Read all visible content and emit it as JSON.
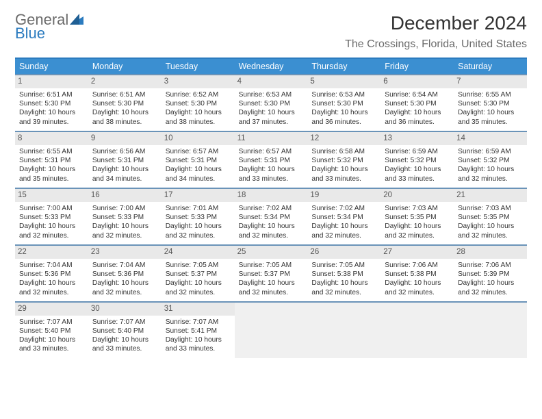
{
  "logo": {
    "line1": "General",
    "line2": "Blue"
  },
  "title": "December 2024",
  "subtitle": "The Crossings, Florida, United States",
  "dayheads": [
    "Sunday",
    "Monday",
    "Tuesday",
    "Wednesday",
    "Thursday",
    "Friday",
    "Saturday"
  ],
  "colors": {
    "header_bg": "#3b8fd1",
    "header_border": "#2b7bbf",
    "row_rule": "#6a93b8",
    "daynum_bg": "#e9e9e9",
    "text_muted": "#6b6b6b"
  },
  "cells": [
    {
      "n": "1",
      "sr": "Sunrise: 6:51 AM",
      "ss": "Sunset: 5:30 PM",
      "dl": "Daylight: 10 hours and 39 minutes."
    },
    {
      "n": "2",
      "sr": "Sunrise: 6:51 AM",
      "ss": "Sunset: 5:30 PM",
      "dl": "Daylight: 10 hours and 38 minutes."
    },
    {
      "n": "3",
      "sr": "Sunrise: 6:52 AM",
      "ss": "Sunset: 5:30 PM",
      "dl": "Daylight: 10 hours and 38 minutes."
    },
    {
      "n": "4",
      "sr": "Sunrise: 6:53 AM",
      "ss": "Sunset: 5:30 PM",
      "dl": "Daylight: 10 hours and 37 minutes."
    },
    {
      "n": "5",
      "sr": "Sunrise: 6:53 AM",
      "ss": "Sunset: 5:30 PM",
      "dl": "Daylight: 10 hours and 36 minutes."
    },
    {
      "n": "6",
      "sr": "Sunrise: 6:54 AM",
      "ss": "Sunset: 5:30 PM",
      "dl": "Daylight: 10 hours and 36 minutes."
    },
    {
      "n": "7",
      "sr": "Sunrise: 6:55 AM",
      "ss": "Sunset: 5:30 PM",
      "dl": "Daylight: 10 hours and 35 minutes."
    },
    {
      "n": "8",
      "sr": "Sunrise: 6:55 AM",
      "ss": "Sunset: 5:31 PM",
      "dl": "Daylight: 10 hours and 35 minutes."
    },
    {
      "n": "9",
      "sr": "Sunrise: 6:56 AM",
      "ss": "Sunset: 5:31 PM",
      "dl": "Daylight: 10 hours and 34 minutes."
    },
    {
      "n": "10",
      "sr": "Sunrise: 6:57 AM",
      "ss": "Sunset: 5:31 PM",
      "dl": "Daylight: 10 hours and 34 minutes."
    },
    {
      "n": "11",
      "sr": "Sunrise: 6:57 AM",
      "ss": "Sunset: 5:31 PM",
      "dl": "Daylight: 10 hours and 33 minutes."
    },
    {
      "n": "12",
      "sr": "Sunrise: 6:58 AM",
      "ss": "Sunset: 5:32 PM",
      "dl": "Daylight: 10 hours and 33 minutes."
    },
    {
      "n": "13",
      "sr": "Sunrise: 6:59 AM",
      "ss": "Sunset: 5:32 PM",
      "dl": "Daylight: 10 hours and 33 minutes."
    },
    {
      "n": "14",
      "sr": "Sunrise: 6:59 AM",
      "ss": "Sunset: 5:32 PM",
      "dl": "Daylight: 10 hours and 32 minutes."
    },
    {
      "n": "15",
      "sr": "Sunrise: 7:00 AM",
      "ss": "Sunset: 5:33 PM",
      "dl": "Daylight: 10 hours and 32 minutes."
    },
    {
      "n": "16",
      "sr": "Sunrise: 7:00 AM",
      "ss": "Sunset: 5:33 PM",
      "dl": "Daylight: 10 hours and 32 minutes."
    },
    {
      "n": "17",
      "sr": "Sunrise: 7:01 AM",
      "ss": "Sunset: 5:33 PM",
      "dl": "Daylight: 10 hours and 32 minutes."
    },
    {
      "n": "18",
      "sr": "Sunrise: 7:02 AM",
      "ss": "Sunset: 5:34 PM",
      "dl": "Daylight: 10 hours and 32 minutes."
    },
    {
      "n": "19",
      "sr": "Sunrise: 7:02 AM",
      "ss": "Sunset: 5:34 PM",
      "dl": "Daylight: 10 hours and 32 minutes."
    },
    {
      "n": "20",
      "sr": "Sunrise: 7:03 AM",
      "ss": "Sunset: 5:35 PM",
      "dl": "Daylight: 10 hours and 32 minutes."
    },
    {
      "n": "21",
      "sr": "Sunrise: 7:03 AM",
      "ss": "Sunset: 5:35 PM",
      "dl": "Daylight: 10 hours and 32 minutes."
    },
    {
      "n": "22",
      "sr": "Sunrise: 7:04 AM",
      "ss": "Sunset: 5:36 PM",
      "dl": "Daylight: 10 hours and 32 minutes."
    },
    {
      "n": "23",
      "sr": "Sunrise: 7:04 AM",
      "ss": "Sunset: 5:36 PM",
      "dl": "Daylight: 10 hours and 32 minutes."
    },
    {
      "n": "24",
      "sr": "Sunrise: 7:05 AM",
      "ss": "Sunset: 5:37 PM",
      "dl": "Daylight: 10 hours and 32 minutes."
    },
    {
      "n": "25",
      "sr": "Sunrise: 7:05 AM",
      "ss": "Sunset: 5:37 PM",
      "dl": "Daylight: 10 hours and 32 minutes."
    },
    {
      "n": "26",
      "sr": "Sunrise: 7:05 AM",
      "ss": "Sunset: 5:38 PM",
      "dl": "Daylight: 10 hours and 32 minutes."
    },
    {
      "n": "27",
      "sr": "Sunrise: 7:06 AM",
      "ss": "Sunset: 5:38 PM",
      "dl": "Daylight: 10 hours and 32 minutes."
    },
    {
      "n": "28",
      "sr": "Sunrise: 7:06 AM",
      "ss": "Sunset: 5:39 PM",
      "dl": "Daylight: 10 hours and 32 minutes."
    },
    {
      "n": "29",
      "sr": "Sunrise: 7:07 AM",
      "ss": "Sunset: 5:40 PM",
      "dl": "Daylight: 10 hours and 33 minutes."
    },
    {
      "n": "30",
      "sr": "Sunrise: 7:07 AM",
      "ss": "Sunset: 5:40 PM",
      "dl": "Daylight: 10 hours and 33 minutes."
    },
    {
      "n": "31",
      "sr": "Sunrise: 7:07 AM",
      "ss": "Sunset: 5:41 PM",
      "dl": "Daylight: 10 hours and 33 minutes."
    }
  ]
}
